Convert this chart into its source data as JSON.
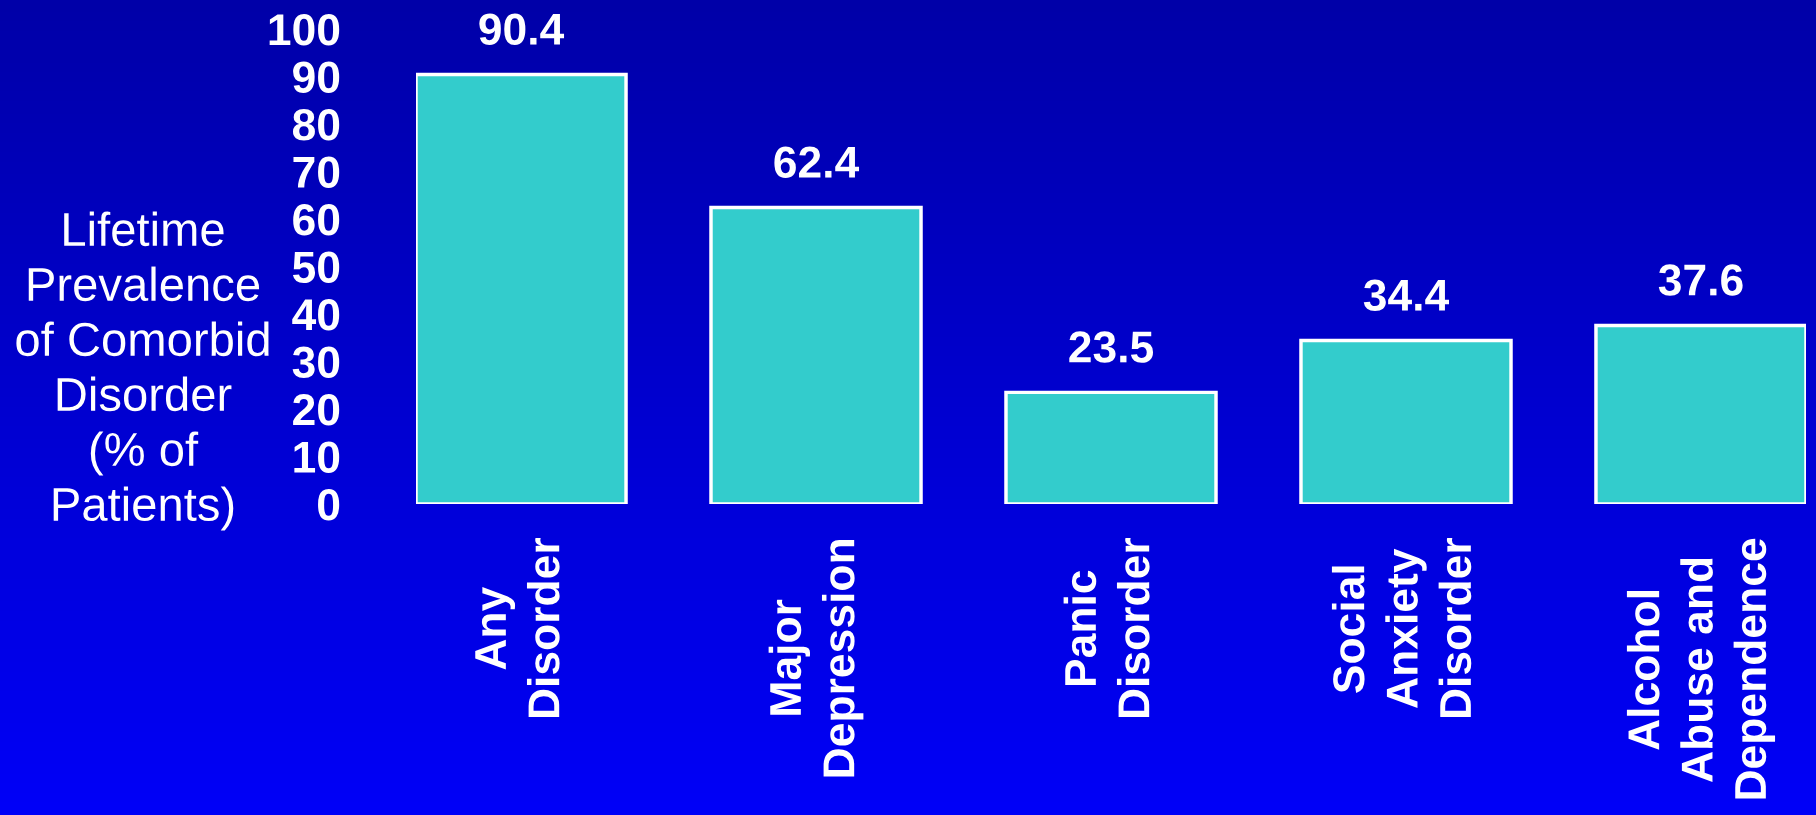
{
  "chart_data": {
    "type": "bar",
    "ylabel": "Lifetime\nPrevalence\nof Comorbid\nDisorder\n(% of\nPatients)",
    "categories": [
      "Any\nDisorder",
      "Major\nDepression",
      "Panic\nDisorder",
      "Social\nAnxiety\nDisorder",
      "Alcohol\nAbuse and\nDependence"
    ],
    "values": [
      90.4,
      62.4,
      23.5,
      34.4,
      37.6
    ],
    "color": "#33cccc",
    "ylim": [
      0,
      100
    ],
    "yticks": [
      0,
      10,
      20,
      30,
      40,
      50,
      60,
      70,
      80,
      90,
      100
    ],
    "data_labels": true
  }
}
